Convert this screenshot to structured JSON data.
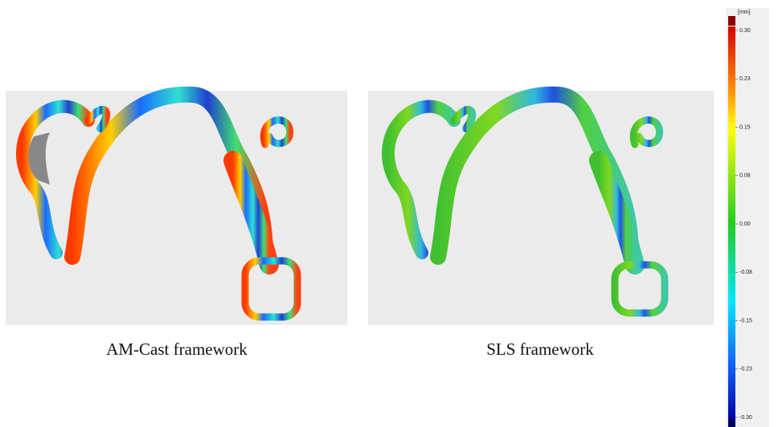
{
  "panels": [
    {
      "caption": "AM-Cast framework"
    },
    {
      "caption": "SLS framework"
    }
  ],
  "colorbar": {
    "unit": "[mm]",
    "labels": [
      "0.30",
      "0.23",
      "0.15",
      "0.08",
      "0.00",
      "-0.08",
      "-0.15",
      "-0.23",
      "-0.30"
    ]
  }
}
